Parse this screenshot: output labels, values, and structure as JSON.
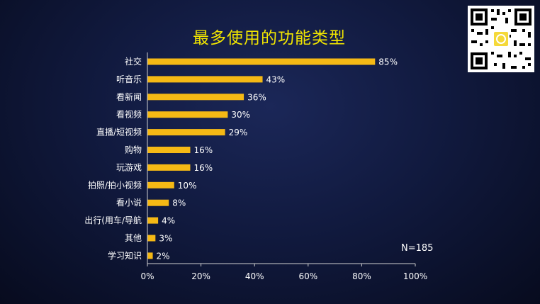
{
  "title": "最多使用的功能类型",
  "sample_size": "N=185",
  "colors": {
    "bar": "#f5b915",
    "text": "#ffffff",
    "title": "#f2e600",
    "axis": "#d0d0d0"
  },
  "chart_data": {
    "type": "bar",
    "orientation": "horizontal",
    "title": "最多使用的功能类型",
    "categories": [
      "社交",
      "听音乐",
      "看新闻",
      "看视频",
      "直播/短视频",
      "购物",
      "玩游戏",
      "拍照/拍小视频",
      "看小说",
      "出行(用车/导航",
      "其他",
      "学习知识"
    ],
    "values": [
      85,
      43,
      36,
      30,
      29,
      16,
      16,
      10,
      8,
      4,
      3,
      2
    ],
    "value_labels": [
      "85%",
      "43%",
      "36%",
      "30%",
      "29%",
      "16%",
      "16%",
      "10%",
      "8%",
      "4%",
      "3%",
      "2%"
    ],
    "xlim": [
      0,
      100
    ],
    "xticks": [
      0,
      20,
      40,
      60,
      80,
      100
    ],
    "xtick_labels": [
      "0%",
      "20%",
      "40%",
      "60%",
      "80%",
      "100%"
    ],
    "xlabel": "",
    "ylabel": "",
    "grid": false,
    "legend": "none"
  }
}
